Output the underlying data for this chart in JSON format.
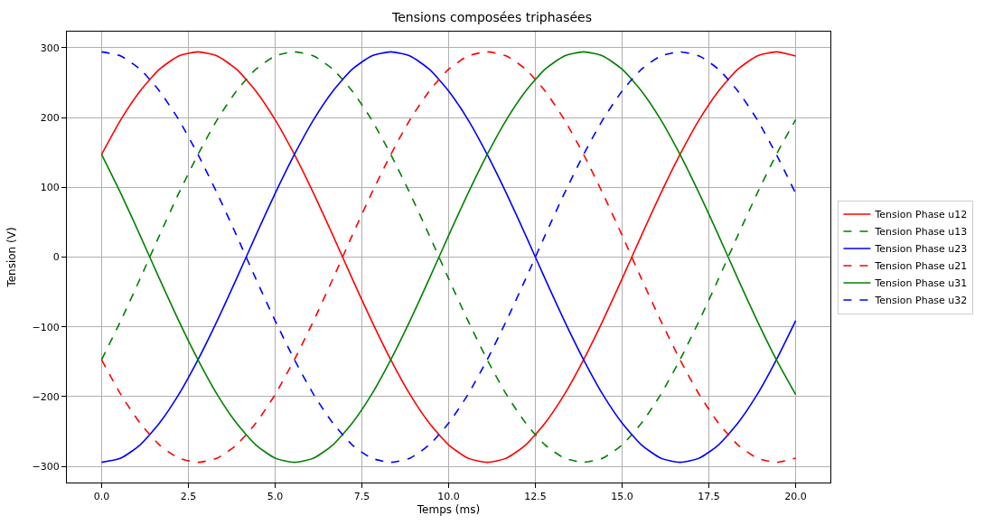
{
  "chart_data": {
    "type": "line",
    "title": "Tensions composées triphasées",
    "xlabel": "Temps (ms)",
    "ylabel": "Tension (V)",
    "x": [
      0,
      0.556,
      1.111,
      1.667,
      2.222,
      2.778,
      3.333,
      3.889,
      4.444,
      5,
      5.556,
      6.111,
      6.667,
      7.222,
      7.778,
      8.333,
      8.889,
      9.444,
      10,
      10.556,
      11.111,
      11.667,
      12.222,
      12.778,
      13.333,
      13.889,
      14.444,
      15,
      15.556,
      16.111,
      16.667,
      17.222,
      17.778,
      18.333,
      18.889,
      19.444,
      20
    ],
    "series": [
      {
        "name": "Tension Phase u12",
        "color": "#ff0000",
        "line_style": "solid",
        "values": [
          147,
          197,
          238,
          269,
          288,
          294,
          288,
          269,
          238,
          197,
          147,
          91,
          31,
          -31,
          -91,
          -147,
          -197,
          -238,
          -269,
          -288,
          -294,
          -288,
          -269,
          -238,
          -197,
          -147,
          -91,
          -31,
          31,
          91,
          147,
          197,
          238,
          269,
          288,
          294,
          288
        ]
      },
      {
        "name": "Tension Phase u13",
        "color": "#008000",
        "line_style": "dashed",
        "values": [
          -147,
          -91,
          -31,
          31,
          91,
          147,
          197,
          238,
          269,
          288,
          294,
          288,
          269,
          238,
          197,
          147,
          91,
          31,
          -31,
          -91,
          -147,
          -197,
          -238,
          -269,
          -288,
          -294,
          -288,
          -269,
          -238,
          -197,
          -147,
          -91,
          -31,
          31,
          91,
          147,
          197
        ]
      },
      {
        "name": "Tension Phase u23",
        "color": "#0000ff",
        "line_style": "solid",
        "values": [
          -294,
          -288,
          -269,
          -238,
          -197,
          -147,
          -91,
          -31,
          31,
          91,
          147,
          197,
          238,
          269,
          288,
          294,
          288,
          269,
          238,
          197,
          147,
          91,
          31,
          -31,
          -91,
          -147,
          -197,
          -238,
          -269,
          -288,
          -294,
          -288,
          -269,
          -238,
          -197,
          -147,
          -91
        ]
      },
      {
        "name": "Tension Phase u21",
        "color": "#ff0000",
        "line_style": "dashed",
        "values": [
          -147,
          -197,
          -238,
          -269,
          -288,
          -294,
          -288,
          -269,
          -238,
          -197,
          -147,
          -91,
          -31,
          31,
          91,
          147,
          197,
          238,
          269,
          288,
          294,
          288,
          269,
          238,
          197,
          147,
          91,
          31,
          -31,
          -91,
          -147,
          -197,
          -238,
          -269,
          -288,
          -294,
          -288
        ]
      },
      {
        "name": "Tension Phase u31",
        "color": "#008000",
        "line_style": "solid",
        "values": [
          147,
          91,
          31,
          -31,
          -91,
          -147,
          -197,
          -238,
          -269,
          -288,
          -294,
          -288,
          -269,
          -238,
          -197,
          -147,
          -91,
          -31,
          31,
          91,
          147,
          197,
          238,
          269,
          288,
          294,
          288,
          269,
          238,
          197,
          147,
          91,
          31,
          -31,
          -91,
          -147,
          -197
        ]
      },
      {
        "name": "Tension Phase u32",
        "color": "#0000ff",
        "line_style": "dashed",
        "values": [
          294,
          288,
          269,
          238,
          197,
          147,
          91,
          31,
          -31,
          -91,
          -147,
          -197,
          -238,
          -269,
          -288,
          -294,
          -288,
          -269,
          -238,
          -197,
          -147,
          -91,
          -31,
          31,
          91,
          147,
          197,
          238,
          269,
          288,
          294,
          288,
          269,
          238,
          197,
          147,
          91
        ]
      }
    ],
    "xlim": [
      -1,
      21
    ],
    "xticks": [
      {
        "value": 0,
        "label": "0.0"
      },
      {
        "value": 2.5,
        "label": "2.5"
      },
      {
        "value": 5,
        "label": "5.0"
      },
      {
        "value": 7.5,
        "label": "7.5"
      },
      {
        "value": 10,
        "label": "10.0"
      },
      {
        "value": 12.5,
        "label": "12.5"
      },
      {
        "value": 15,
        "label": "15.0"
      },
      {
        "value": 17.5,
        "label": "17.5"
      },
      {
        "value": 20,
        "label": "20.0"
      }
    ],
    "ylim": [
      -323,
      323
    ],
    "yticks": [
      {
        "value": -300,
        "label": "−300"
      },
      {
        "value": -200,
        "label": "−200"
      },
      {
        "value": -100,
        "label": "−100"
      },
      0,
      100,
      200,
      300
    ],
    "grid": true,
    "legend": "right",
    "marker": "none"
  }
}
